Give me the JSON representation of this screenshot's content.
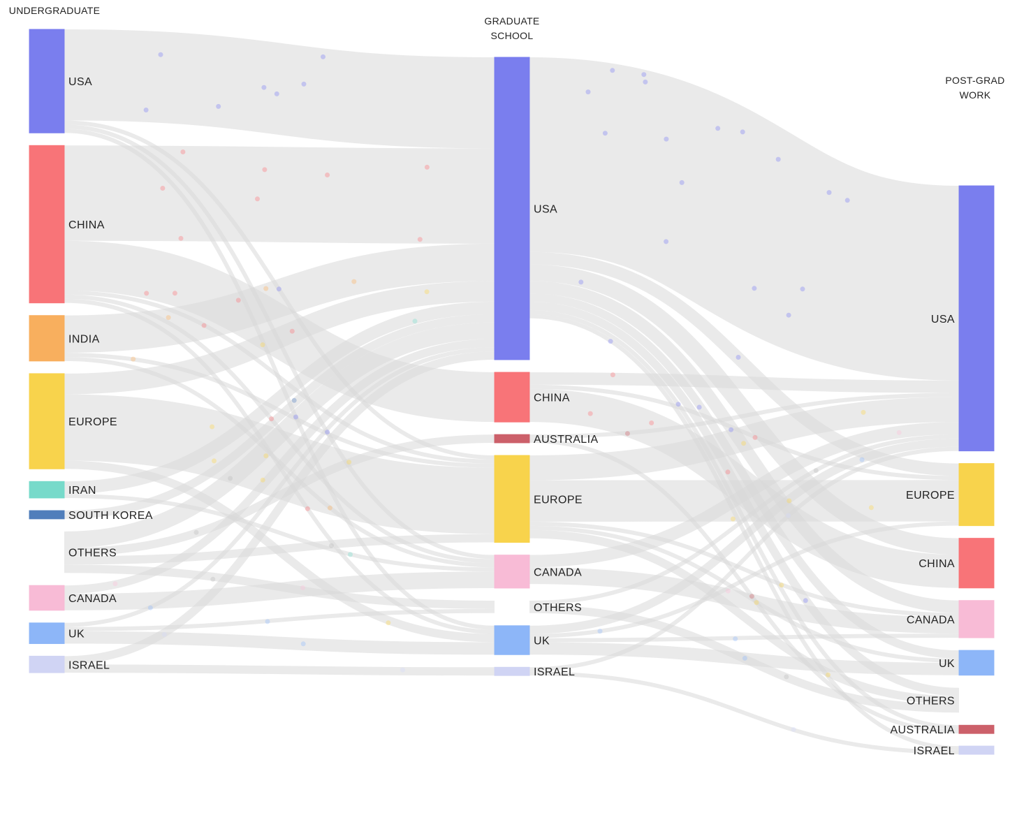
{
  "columns": [
    {
      "id": "undergrad",
      "title": [
        "UNDERGRADUATE"
      ]
    },
    {
      "id": "grad",
      "title": [
        "GRADUATE",
        "SCHOOL"
      ]
    },
    {
      "id": "work",
      "title": [
        "POST-GRAD",
        "WORK"
      ]
    }
  ],
  "colors": {
    "usa": "#7b7ff5",
    "china": "#ff7479",
    "india": "#ffb25e",
    "europe": "#ffd84a",
    "iran": "#78e0cf",
    "south_korea": "#4f7fc0",
    "canada": "#ffc0db",
    "uk": "#8fbaff",
    "israel": "#d5d9fb",
    "australia": "#d1606a",
    "link": "#d8d8d8"
  },
  "nodes": {
    "undergrad": [
      {
        "id": "u_usa",
        "label": "USA",
        "color": "usa"
      },
      {
        "id": "u_china",
        "label": "CHINA",
        "color": "china"
      },
      {
        "id": "u_india",
        "label": "INDIA",
        "color": "india"
      },
      {
        "id": "u_europe",
        "label": "EUROPE",
        "color": "europe"
      },
      {
        "id": "u_iran",
        "label": "IRAN",
        "color": "iran"
      },
      {
        "id": "u_korea",
        "label": "SOUTH KOREA",
        "color": "south_korea"
      },
      {
        "id": "u_others",
        "label": "OTHERS",
        "color": null
      },
      {
        "id": "u_canada",
        "label": "CANADA",
        "color": "canada"
      },
      {
        "id": "u_uk",
        "label": "UK",
        "color": "uk"
      },
      {
        "id": "u_israel",
        "label": "ISRAEL",
        "color": "israel"
      }
    ],
    "grad": [
      {
        "id": "g_usa",
        "label": "USA",
        "color": "usa"
      },
      {
        "id": "g_china",
        "label": "CHINA",
        "color": "china"
      },
      {
        "id": "g_australia",
        "label": "AUSTRALIA",
        "color": "australia"
      },
      {
        "id": "g_europe",
        "label": "EUROPE",
        "color": "europe"
      },
      {
        "id": "g_canada",
        "label": "CANADA",
        "color": "canada"
      },
      {
        "id": "g_others",
        "label": "OTHERS",
        "color": null
      },
      {
        "id": "g_uk",
        "label": "UK",
        "color": "uk"
      },
      {
        "id": "g_israel",
        "label": "ISRAEL",
        "color": "israel"
      }
    ],
    "work": [
      {
        "id": "w_usa",
        "label": "USA",
        "color": "usa"
      },
      {
        "id": "w_europe",
        "label": "EUROPE",
        "color": "europe"
      },
      {
        "id": "w_china",
        "label": "CHINA",
        "color": "china"
      },
      {
        "id": "w_canada",
        "label": "CANADA",
        "color": "canada"
      },
      {
        "id": "w_uk",
        "label": "UK",
        "color": "uk"
      },
      {
        "id": "w_others",
        "label": "OTHERS",
        "color": null
      },
      {
        "id": "w_australia",
        "label": "AUSTRALIA",
        "color": "australia"
      },
      {
        "id": "w_israel",
        "label": "ISRAEL",
        "color": "israel"
      }
    ]
  },
  "links": [
    {
      "source": "u_usa",
      "target": "g_usa",
      "value": 22
    },
    {
      "source": "u_usa",
      "target": "g_europe",
      "value": 1
    },
    {
      "source": "u_usa",
      "target": "g_canada",
      "value": 1
    },
    {
      "source": "u_usa",
      "target": "g_uk",
      "value": 1
    },
    {
      "source": "u_china",
      "target": "g_usa",
      "value": 23
    },
    {
      "source": "u_china",
      "target": "g_china",
      "value": 12
    },
    {
      "source": "u_china",
      "target": "g_europe",
      "value": 1
    },
    {
      "source": "u_china",
      "target": "g_canada",
      "value": 1
    },
    {
      "source": "u_china",
      "target": "g_uk",
      "value": 1
    },
    {
      "source": "u_india",
      "target": "g_usa",
      "value": 9
    },
    {
      "source": "u_india",
      "target": "g_europe",
      "value": 1
    },
    {
      "source": "u_india",
      "target": "g_canada",
      "value": 1
    },
    {
      "source": "u_europe",
      "target": "g_usa",
      "value": 5
    },
    {
      "source": "u_europe",
      "target": "g_europe",
      "value": 16
    },
    {
      "source": "u_europe",
      "target": "g_uk",
      "value": 2
    },
    {
      "source": "u_iran",
      "target": "g_usa",
      "value": 3
    },
    {
      "source": "u_iran",
      "target": "g_canada",
      "value": 1
    },
    {
      "source": "u_korea",
      "target": "g_usa",
      "value": 2
    },
    {
      "source": "u_others",
      "target": "g_usa",
      "value": 4
    },
    {
      "source": "u_others",
      "target": "g_australia",
      "value": 2
    },
    {
      "source": "u_others",
      "target": "g_europe",
      "value": 2
    },
    {
      "source": "u_others",
      "target": "g_others",
      "value": 2
    },
    {
      "source": "u_canada",
      "target": "g_usa",
      "value": 2
    },
    {
      "source": "u_canada",
      "target": "g_canada",
      "value": 4
    },
    {
      "source": "u_uk",
      "target": "g_usa",
      "value": 1
    },
    {
      "source": "u_uk",
      "target": "g_others",
      "value": 1
    },
    {
      "source": "u_uk",
      "target": "g_uk",
      "value": 3
    },
    {
      "source": "u_israel",
      "target": "g_usa",
      "value": 2
    },
    {
      "source": "u_israel",
      "target": "g_israel",
      "value": 2
    },
    {
      "source": "g_usa",
      "target": "w_usa",
      "value": 47
    },
    {
      "source": "g_usa",
      "target": "w_europe",
      "value": 3
    },
    {
      "source": "g_usa",
      "target": "w_china",
      "value": 4
    },
    {
      "source": "g_usa",
      "target": "w_canada",
      "value": 3
    },
    {
      "source": "g_usa",
      "target": "w_uk",
      "value": 2
    },
    {
      "source": "g_usa",
      "target": "w_others",
      "value": 2
    },
    {
      "source": "g_usa",
      "target": "w_australia",
      "value": 1
    },
    {
      "source": "g_usa",
      "target": "w_israel",
      "value": 1
    },
    {
      "source": "g_china",
      "target": "w_usa",
      "value": 3
    },
    {
      "source": "g_china",
      "target": "w_china",
      "value": 8
    },
    {
      "source": "g_china",
      "target": "w_europe",
      "value": 1
    },
    {
      "source": "g_australia",
      "target": "w_australia",
      "value": 1
    },
    {
      "source": "g_australia",
      "target": "w_usa",
      "value": 1
    },
    {
      "source": "g_europe",
      "target": "w_europe",
      "value": 10
    },
    {
      "source": "g_europe",
      "target": "w_usa",
      "value": 6
    },
    {
      "source": "g_europe",
      "target": "w_others",
      "value": 2
    },
    {
      "source": "g_europe",
      "target": "w_uk",
      "value": 1
    },
    {
      "source": "g_europe",
      "target": "w_canada",
      "value": 1
    },
    {
      "source": "g_canada",
      "target": "w_canada",
      "value": 4
    },
    {
      "source": "g_canada",
      "target": "w_usa",
      "value": 3
    },
    {
      "source": "g_others",
      "target": "w_others",
      "value": 2
    },
    {
      "source": "g_others",
      "target": "w_usa",
      "value": 1
    },
    {
      "source": "g_uk",
      "target": "w_uk",
      "value": 3
    },
    {
      "source": "g_uk",
      "target": "w_usa",
      "value": 2
    },
    {
      "source": "g_uk",
      "target": "w_europe",
      "value": 1
    },
    {
      "source": "g_uk",
      "target": "w_canada",
      "value": 1
    },
    {
      "source": "g_israel",
      "target": "w_usa",
      "value": 1
    },
    {
      "source": "g_israel",
      "target": "w_israel",
      "value": 1
    }
  ]
}
